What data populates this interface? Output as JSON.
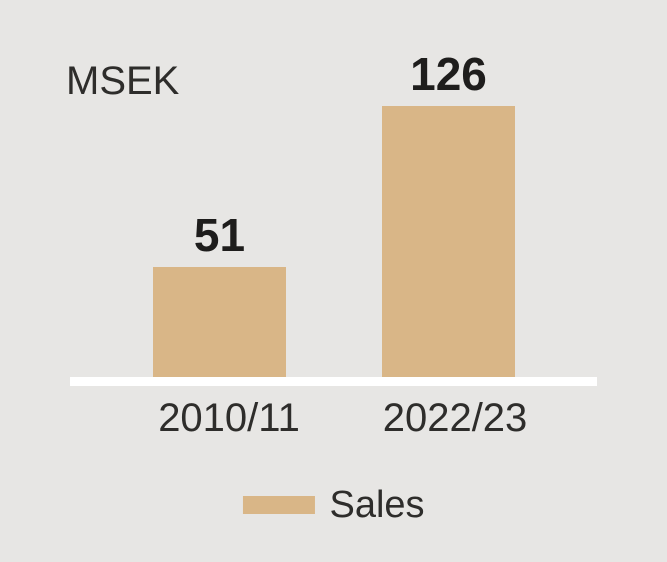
{
  "chart_data": {
    "type": "bar",
    "title": "",
    "unit_label": "MSEK",
    "categories": [
      "2010/11",
      "2022/23"
    ],
    "series": [
      {
        "name": "Sales",
        "values": [
          51,
          126
        ]
      }
    ],
    "ylim": [
      0,
      126
    ],
    "grid": false,
    "legend_position": "bottom",
    "bar_color": "#d9b687",
    "background_color": "#e7e6e4",
    "axis_line_color": "#ffffff",
    "text_color": "#2e2d2b"
  }
}
